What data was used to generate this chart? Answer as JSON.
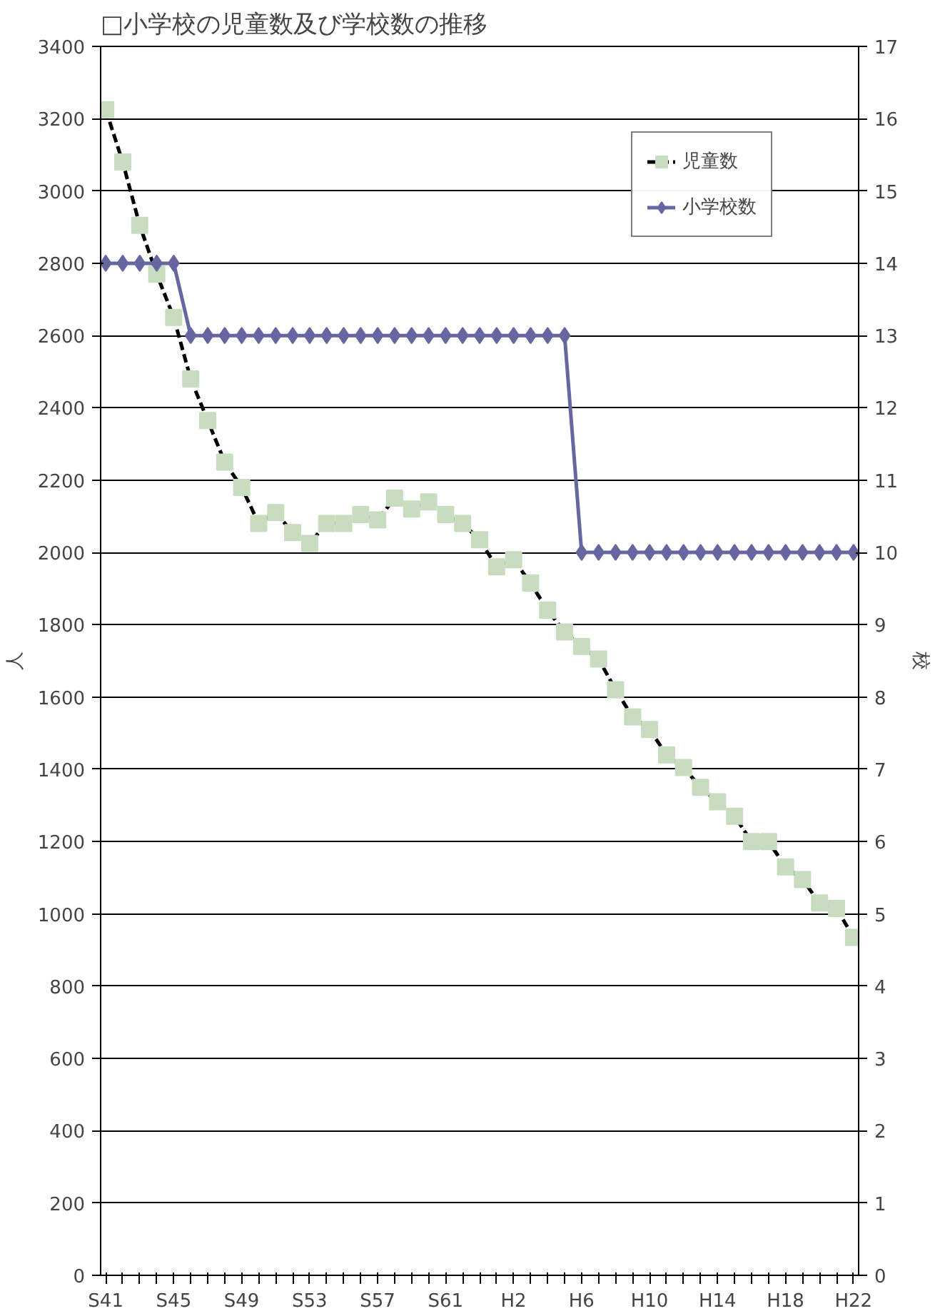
{
  "chart_data": {
    "type": "line",
    "title": "□小学校の児童数及び学校数の推移",
    "ylabel": "人",
    "y2label": "校",
    "categories": [
      "S41",
      null,
      null,
      null,
      "S45",
      null,
      null,
      null,
      "S49",
      null,
      null,
      null,
      "S53",
      null,
      null,
      null,
      "S57",
      null,
      null,
      null,
      "S61",
      null,
      null,
      null,
      "H2",
      null,
      null,
      null,
      "H6",
      null,
      null,
      null,
      "H10",
      null,
      null,
      null,
      "H14",
      null,
      null,
      null,
      "H18",
      null,
      null,
      null,
      "H22"
    ],
    "series": [
      {
        "name": "児童数",
        "color": "#000000",
        "marker": "square",
        "line_style": "dashed",
        "values": [
          3225,
          3080,
          2905,
          2770,
          2650,
          2480,
          2365,
          2250,
          2180,
          2080,
          2110,
          2055,
          2025,
          2080,
          2080,
          2105,
          2090,
          2150,
          2120,
          2140,
          2105,
          2080,
          2035,
          1960,
          1980,
          1915,
          1840,
          1780,
          1740,
          1705,
          1620,
          1545,
          1510,
          1440,
          1405,
          1350,
          1310,
          1270,
          1200,
          1200,
          1130,
          1095,
          1030,
          1015,
          935
        ]
      },
      {
        "name": "小学校数",
        "color": "#6666a0",
        "marker": "diamond",
        "line_style": "solid",
        "axis": "y2",
        "values": [
          14,
          14,
          14,
          14,
          14,
          13,
          13,
          13,
          13,
          13,
          13,
          13,
          13,
          13,
          13,
          13,
          13,
          13,
          13,
          13,
          13,
          13,
          13,
          13,
          13,
          13,
          13,
          13,
          10,
          10,
          10,
          10,
          10,
          10,
          10,
          10,
          10,
          10,
          10,
          10,
          10,
          10,
          10,
          10,
          10
        ]
      }
    ],
    "ylim": [
      0,
      3400
    ],
    "yticks": [
      0,
      200,
      400,
      600,
      800,
      1000,
      1200,
      1400,
      1600,
      1800,
      2000,
      2200,
      2400,
      2600,
      2800,
      3000,
      3200,
      3400
    ],
    "y2lim": [
      0,
      17
    ],
    "y2ticks": [
      0,
      1,
      2,
      3,
      4,
      5,
      6,
      7,
      8,
      9,
      10,
      11,
      12,
      13,
      14,
      15,
      16,
      17
    ],
    "grid": "y",
    "legend": "top right"
  }
}
